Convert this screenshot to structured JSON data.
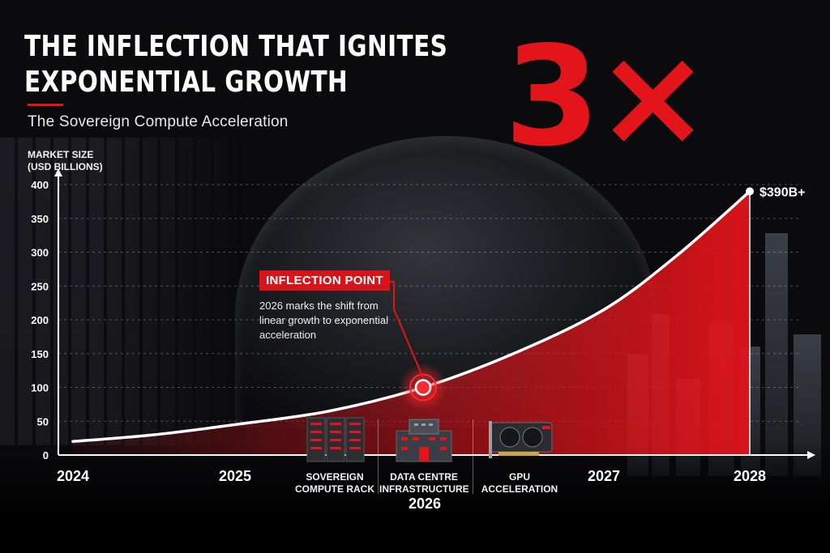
{
  "title": "THE INFLECTION THAT IGNITES EXPONENTIAL GROWTH",
  "subtitle": "The Sovereign Compute Acceleration",
  "multiplier": "3×",
  "colors": {
    "accent": "#e1141a",
    "curve": "#ffffff",
    "background": "#0b0b0e"
  },
  "callout": {
    "tag": "INFLECTION POINT",
    "text": "2026 marks the shift from linear growth to exponential acceleration"
  },
  "icons": [
    {
      "icon": "server-rack-icon",
      "label": "SOVEREIGN COMPUTE RACK"
    },
    {
      "icon": "data-centre-building-icon",
      "label": "DATA CENTRE INFRASTRUCTURE"
    },
    {
      "icon": "gpu-card-icon",
      "label": "GPU ACCELERATION"
    }
  ],
  "chart_data": {
    "type": "area",
    "ylabel": "MARKET SIZE (USD BILLIONS)",
    "ylim": [
      0,
      400
    ],
    "yticks": [
      0,
      50,
      100,
      150,
      200,
      250,
      300,
      350,
      400
    ],
    "grid": true,
    "x_categories": [
      "2024",
      "2025",
      "2026",
      "2027",
      "2028"
    ],
    "series": [
      {
        "x": [
          2024,
          2024.5,
          2025,
          2025.5,
          2026,
          2026.5,
          2027,
          2027.5,
          2028
        ],
        "values": [
          20,
          30,
          45,
          65,
          100,
          150,
          215,
          295,
          390
        ]
      }
    ],
    "highlight": {
      "x": 2026,
      "y": 100
    },
    "endpoint_label": "$390B+"
  }
}
